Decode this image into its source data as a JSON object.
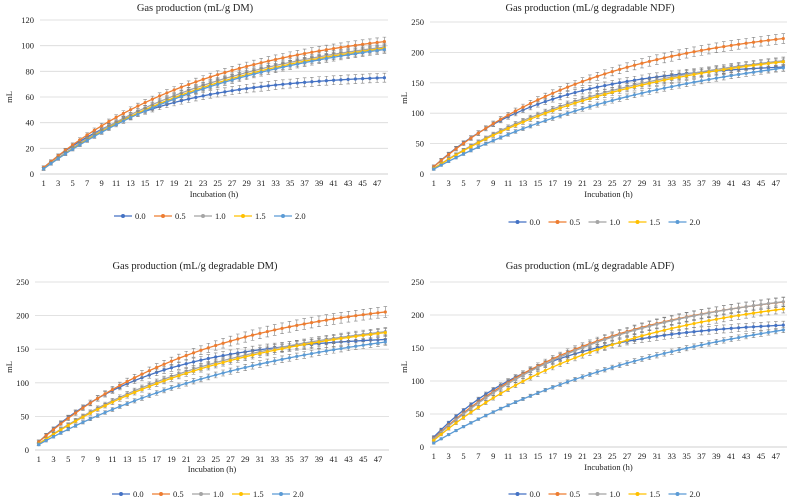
{
  "colors": {
    "0.0": "#4472C4",
    "0.5": "#ED7D31",
    "1.0": "#A5A5A5",
    "1.5": "#FFC000",
    "2.0": "#5B9BD5",
    "grid": "#D9D9D9",
    "axis": "#BFBFBF",
    "errorbar": "#808080"
  },
  "chart_data": [
    {
      "type": "line",
      "title": "Gas production (mL/g DM)",
      "xlabel": "Incubation (h)",
      "ylabel": "mL",
      "x": [
        1,
        2,
        3,
        4,
        5,
        6,
        7,
        8,
        9,
        10,
        11,
        12,
        13,
        14,
        15,
        16,
        17,
        18,
        19,
        20,
        21,
        22,
        23,
        24,
        25,
        26,
        27,
        28,
        29,
        30,
        31,
        32,
        33,
        34,
        35,
        36,
        37,
        38,
        39,
        40,
        41,
        42,
        43,
        44,
        45,
        46,
        47,
        48
      ],
      "xtick_labels": [
        "1",
        "3",
        "5",
        "7",
        "9",
        "11",
        "13",
        "15",
        "17",
        "19",
        "21",
        "23",
        "25",
        "27",
        "29",
        "31",
        "33",
        "35",
        "37",
        "39",
        "41",
        "43",
        "45",
        "47"
      ],
      "ylim": [
        0,
        120
      ],
      "yticks": [
        0,
        20,
        40,
        60,
        80,
        100,
        120
      ],
      "legend": "bottom",
      "series": [
        {
          "name": "0.0",
          "start": 5,
          "asymptote": 78.5,
          "rate": 0.065,
          "err": 3.5
        },
        {
          "name": "0.5",
          "start": 5,
          "asymptote": 119,
          "rate": 0.042,
          "err": 3.5
        },
        {
          "name": "1.0",
          "start": 4,
          "asymptote": 117,
          "rate": 0.039,
          "err": 3.0
        },
        {
          "name": "1.5",
          "start": 4,
          "asymptote": 118,
          "rate": 0.037,
          "err": 3.0
        },
        {
          "name": "2.0",
          "start": 4,
          "asymptote": 118,
          "rate": 0.036,
          "err": 3.0
        }
      ]
    },
    {
      "type": "line",
      "title": "Gas production (mL/g degradable NDF)",
      "xlabel": "Incubation (h)",
      "ylabel": "mL",
      "x": [
        1,
        2,
        3,
        4,
        5,
        6,
        7,
        8,
        9,
        10,
        11,
        12,
        13,
        14,
        15,
        16,
        17,
        18,
        19,
        20,
        21,
        22,
        23,
        24,
        25,
        26,
        27,
        28,
        29,
        30,
        31,
        32,
        33,
        34,
        35,
        36,
        37,
        38,
        39,
        40,
        41,
        42,
        43,
        44,
        45,
        46,
        47,
        48
      ],
      "xtick_labels": [
        "1",
        "3",
        "5",
        "7",
        "9",
        "11",
        "13",
        "15",
        "17",
        "19",
        "21",
        "23",
        "25",
        "27",
        "29",
        "31",
        "33",
        "35",
        "37",
        "39",
        "41",
        "43",
        "45",
        "47"
      ],
      "ylim": [
        0,
        250
      ],
      "yticks": [
        0,
        50,
        100,
        150,
        200,
        250
      ],
      "legend": "bottom",
      "series": [
        {
          "name": "0.0",
          "start": 12,
          "asymptote": 184,
          "rate": 0.065,
          "err": 7
        },
        {
          "name": "0.5",
          "start": 12,
          "asymptote": 255,
          "rate": 0.043,
          "err": 8
        },
        {
          "name": "1.0",
          "start": 9,
          "asymptote": 220,
          "rate": 0.039,
          "err": 6
        },
        {
          "name": "1.5",
          "start": 9,
          "asymptote": 222,
          "rate": 0.037,
          "err": 6
        },
        {
          "name": "2.0",
          "start": 8,
          "asymptote": 228,
          "rate": 0.03,
          "err": 5
        }
      ]
    },
    {
      "type": "line",
      "title": "Gas production (mL/g degradable DM)",
      "xlabel": "Incubation (h)",
      "ylabel": "mL",
      "x": [
        1,
        2,
        3,
        4,
        5,
        6,
        7,
        8,
        9,
        10,
        11,
        12,
        13,
        14,
        15,
        16,
        17,
        18,
        19,
        20,
        21,
        22,
        23,
        24,
        25,
        26,
        27,
        28,
        29,
        30,
        31,
        32,
        33,
        34,
        35,
        36,
        37,
        38,
        39,
        40,
        41,
        42,
        43,
        44,
        45,
        46,
        47,
        48
      ],
      "xtick_labels": [
        "1",
        "3",
        "5",
        "7",
        "9",
        "11",
        "13",
        "15",
        "17",
        "19",
        "21",
        "23",
        "25",
        "27",
        "29",
        "31",
        "33",
        "35",
        "37",
        "39",
        "41",
        "43",
        "45",
        "47"
      ],
      "ylim": [
        0,
        250
      ],
      "yticks": [
        0,
        50,
        100,
        150,
        200,
        250
      ],
      "legend": "bottom",
      "series": [
        {
          "name": "0.0",
          "start": 12,
          "asymptote": 172,
          "rate": 0.065,
          "err": 7
        },
        {
          "name": "0.5",
          "start": 12,
          "asymptote": 235,
          "rate": 0.043,
          "err": 8
        },
        {
          "name": "1.0",
          "start": 9,
          "asymptote": 208,
          "rate": 0.039,
          "err": 6
        },
        {
          "name": "1.5",
          "start": 9,
          "asymptote": 210,
          "rate": 0.037,
          "err": 6
        },
        {
          "name": "2.0",
          "start": 8,
          "asymptote": 210,
          "rate": 0.03,
          "err": 5
        }
      ]
    },
    {
      "type": "line",
      "title": "Gas production (mL/g degradable ADF)",
      "xlabel": "Incubation (h)",
      "ylabel": "mL",
      "x": [
        1,
        2,
        3,
        4,
        5,
        6,
        7,
        8,
        9,
        10,
        11,
        12,
        13,
        14,
        15,
        16,
        17,
        18,
        19,
        20,
        21,
        22,
        23,
        24,
        25,
        26,
        27,
        28,
        29,
        30,
        31,
        32,
        33,
        34,
        35,
        36,
        37,
        38,
        39,
        40,
        41,
        42,
        43,
        44,
        45,
        46,
        47,
        48
      ],
      "xtick_labels": [
        "1",
        "3",
        "5",
        "7",
        "9",
        "11",
        "13",
        "15",
        "17",
        "19",
        "21",
        "23",
        "25",
        "27",
        "29",
        "31",
        "33",
        "35",
        "37",
        "39",
        "41",
        "43",
        "45",
        "47"
      ],
      "ylim": [
        0,
        250
      ],
      "yticks": [
        0,
        50,
        100,
        150,
        200,
        250
      ],
      "legend": "bottom",
      "series": [
        {
          "name": "0.0",
          "start": 15,
          "asymptote": 193,
          "rate": 0.065,
          "err": 6
        },
        {
          "name": "0.5",
          "start": 13,
          "asymptote": 248,
          "rate": 0.045,
          "err": 7
        },
        {
          "name": "1.0",
          "start": 12,
          "asymptote": 252,
          "rate": 0.043,
          "err": 7
        },
        {
          "name": "1.5",
          "start": 10,
          "asymptote": 245,
          "rate": 0.04,
          "err": 6
        },
        {
          "name": "2.0",
          "start": 6,
          "asymptote": 240,
          "rate": 0.028,
          "err": 4
        }
      ]
    }
  ]
}
